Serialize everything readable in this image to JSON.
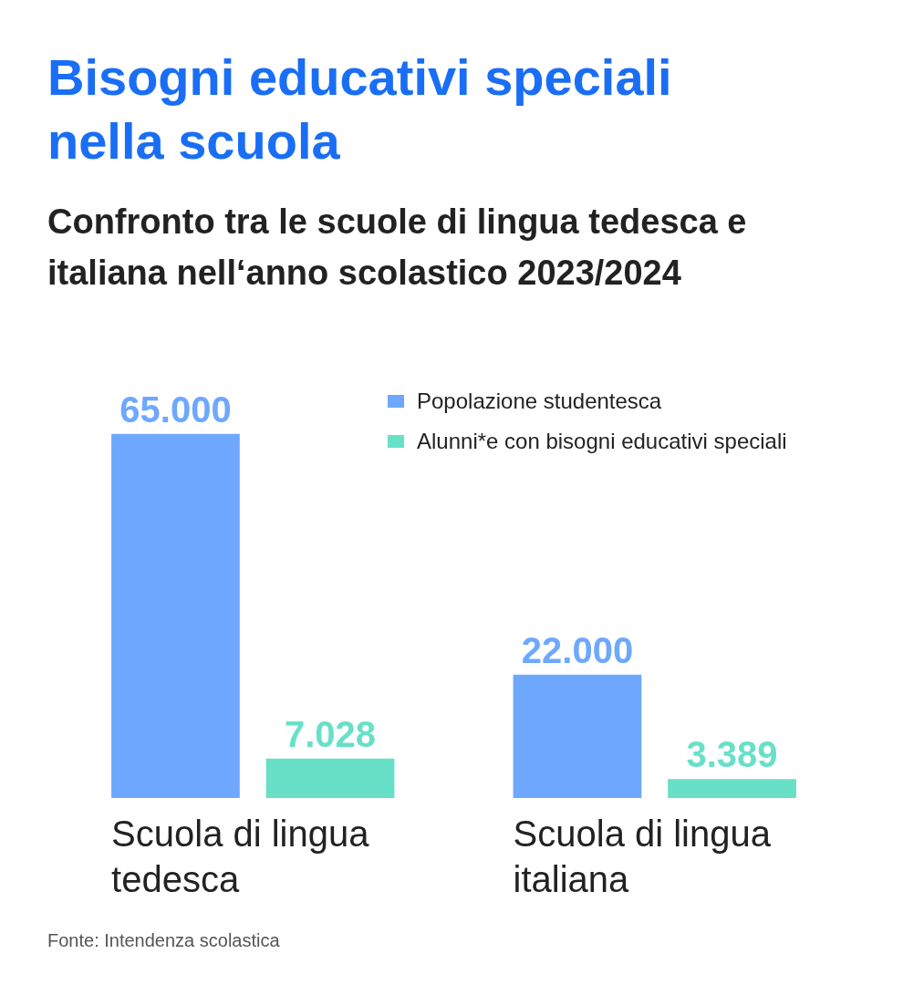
{
  "chart_data": {
    "type": "bar",
    "title": "Bisogni educativi speciali nella scuola",
    "subtitle": "Confronto tra le scuole di lingua tedesca e italiana nell‘anno scolastico 2023/2024",
    "categories": [
      "Scuola di lingua tedesca",
      "Scuola di lingua italiana"
    ],
    "series": [
      {
        "name": "Popolazione studentesca",
        "color": "#6ea8fe",
        "values": [
          65000,
          22000
        ],
        "value_labels": [
          "65.000",
          "22.000"
        ]
      },
      {
        "name": "Alunni*e con bisogni educativi speciali",
        "color": "#68e0c8",
        "values": [
          7028,
          3389
        ],
        "value_labels": [
          "7.028",
          "3.389"
        ]
      }
    ],
    "legend": "top right",
    "grid": false,
    "tick_labels": "x",
    "annotations": [
      "Fonte: Intendenza scolastica"
    ]
  }
}
